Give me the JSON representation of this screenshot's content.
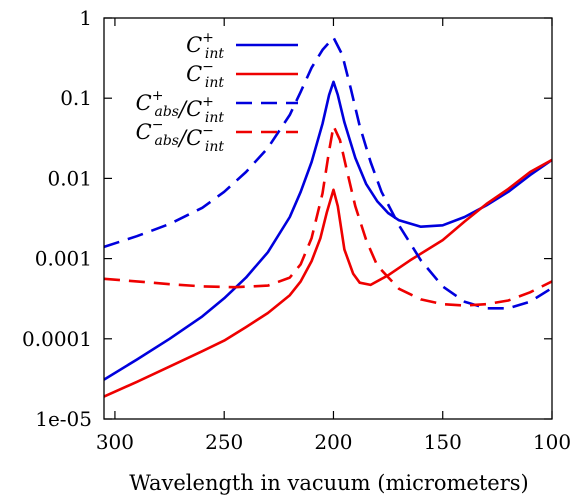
{
  "chart_data": {
    "type": "line",
    "xlabel": "Wavelength in vacuum (micrometers)",
    "ylabel": "",
    "x_scale": "linear",
    "x_reversed": true,
    "xlim": [
      305,
      100
    ],
    "y_scale": "log",
    "ylim": [
      1e-05,
      1
    ],
    "x_ticks": [
      300,
      250,
      200,
      150,
      100
    ],
    "x_tick_labels": [
      "300",
      "250",
      "200",
      "150",
      "100"
    ],
    "y_ticks": [
      1e-05,
      0.0001,
      0.001,
      0.01,
      0.1,
      1
    ],
    "y_tick_labels": [
      "1e-05",
      "0.0001",
      "0.001",
      "0.01",
      "0.1",
      "1"
    ],
    "grid": false,
    "legend_position": "top-left",
    "series": [
      {
        "name": "C_int^+",
        "legend": {
          "base": "C",
          "sub": "int",
          "sup": "+"
        },
        "color": "#0000dd",
        "dash": "solid",
        "points": [
          [
            305,
            3.1e-05
          ],
          [
            290,
            5.5e-05
          ],
          [
            275,
            0.0001
          ],
          [
            260,
            0.00019
          ],
          [
            250,
            0.00032
          ],
          [
            240,
            0.00058
          ],
          [
            230,
            0.0012
          ],
          [
            220,
            0.0033
          ],
          [
            215,
            0.0068
          ],
          [
            210,
            0.016
          ],
          [
            205,
            0.048
          ],
          [
            202,
            0.11
          ],
          [
            200,
            0.16
          ],
          [
            198,
            0.11
          ],
          [
            195,
            0.05
          ],
          [
            190,
            0.018
          ],
          [
            185,
            0.0085
          ],
          [
            180,
            0.0052
          ],
          [
            175,
            0.0037
          ],
          [
            170,
            0.003
          ],
          [
            160,
            0.0025
          ],
          [
            150,
            0.0026
          ],
          [
            140,
            0.0033
          ],
          [
            130,
            0.0046
          ],
          [
            120,
            0.0068
          ],
          [
            110,
            0.011
          ],
          [
            100,
            0.017
          ]
        ]
      },
      {
        "name": "C_int^-",
        "legend": {
          "base": "C",
          "sub": "int",
          "sup": "−"
        },
        "color": "#ee0000",
        "dash": "solid",
        "points": [
          [
            305,
            1.9e-05
          ],
          [
            290,
            2.9e-05
          ],
          [
            275,
            4.5e-05
          ],
          [
            260,
            7e-05
          ],
          [
            250,
            9.5e-05
          ],
          [
            240,
            0.00014
          ],
          [
            230,
            0.00021
          ],
          [
            220,
            0.00035
          ],
          [
            215,
            0.00052
          ],
          [
            210,
            0.00093
          ],
          [
            206,
            0.0018
          ],
          [
            203,
            0.0038
          ],
          [
            200,
            0.0072
          ],
          [
            198,
            0.0045
          ],
          [
            195,
            0.0013
          ],
          [
            191,
            0.00065
          ],
          [
            188,
            0.0005
          ],
          [
            183,
            0.00047
          ],
          [
            175,
            0.00062
          ],
          [
            165,
            0.00095
          ],
          [
            150,
            0.0017
          ],
          [
            140,
            0.0029
          ],
          [
            130,
            0.0048
          ],
          [
            120,
            0.0074
          ],
          [
            110,
            0.012
          ],
          [
            100,
            0.017
          ]
        ]
      },
      {
        "name": "C_abs^+/C_int^+",
        "legend": {
          "base": "C",
          "sub": "abs",
          "sup": "+",
          "base2": "C",
          "sub2": "int",
          "sup2": "+"
        },
        "color": "#0000dd",
        "dash": "long-dash",
        "points": [
          [
            305,
            0.0014
          ],
          [
            290,
            0.0019
          ],
          [
            275,
            0.0027
          ],
          [
            260,
            0.0043
          ],
          [
            250,
            0.0068
          ],
          [
            240,
            0.012
          ],
          [
            230,
            0.024
          ],
          [
            220,
            0.062
          ],
          [
            215,
            0.12
          ],
          [
            210,
            0.24
          ],
          [
            205,
            0.4
          ],
          [
            200,
            0.57
          ],
          [
            196,
            0.35
          ],
          [
            192,
            0.13
          ],
          [
            188,
            0.045
          ],
          [
            183,
            0.016
          ],
          [
            178,
            0.0068
          ],
          [
            170,
            0.0026
          ],
          [
            160,
            0.00095
          ],
          [
            150,
            0.00045
          ],
          [
            140,
            0.00029
          ],
          [
            130,
            0.00024
          ],
          [
            120,
            0.00024
          ],
          [
            110,
            0.00029
          ],
          [
            100,
            0.00043
          ]
        ]
      },
      {
        "name": "C_abs^-/C_int^-",
        "legend": {
          "base": "C",
          "sub": "abs",
          "sup": "−",
          "base2": "C",
          "sub2": "int",
          "sup2": "−"
        },
        "color": "#ee0000",
        "dash": "long-dash",
        "points": [
          [
            305,
            0.00056
          ],
          [
            290,
            0.00052
          ],
          [
            275,
            0.00048
          ],
          [
            260,
            0.00045
          ],
          [
            245,
            0.00044
          ],
          [
            230,
            0.00046
          ],
          [
            220,
            0.00058
          ],
          [
            215,
            0.00085
          ],
          [
            210,
            0.0018
          ],
          [
            205,
            0.0065
          ],
          [
            202,
            0.022
          ],
          [
            200,
            0.045
          ],
          [
            197,
            0.03
          ],
          [
            194,
            0.013
          ],
          [
            190,
            0.0045
          ],
          [
            185,
            0.0017
          ],
          [
            180,
            0.00082
          ],
          [
            170,
            0.00042
          ],
          [
            160,
            0.00031
          ],
          [
            150,
            0.00027
          ],
          [
            140,
            0.00026
          ],
          [
            130,
            0.00027
          ],
          [
            120,
            0.0003
          ],
          [
            110,
            0.00038
          ],
          [
            100,
            0.00052
          ]
        ]
      }
    ]
  }
}
